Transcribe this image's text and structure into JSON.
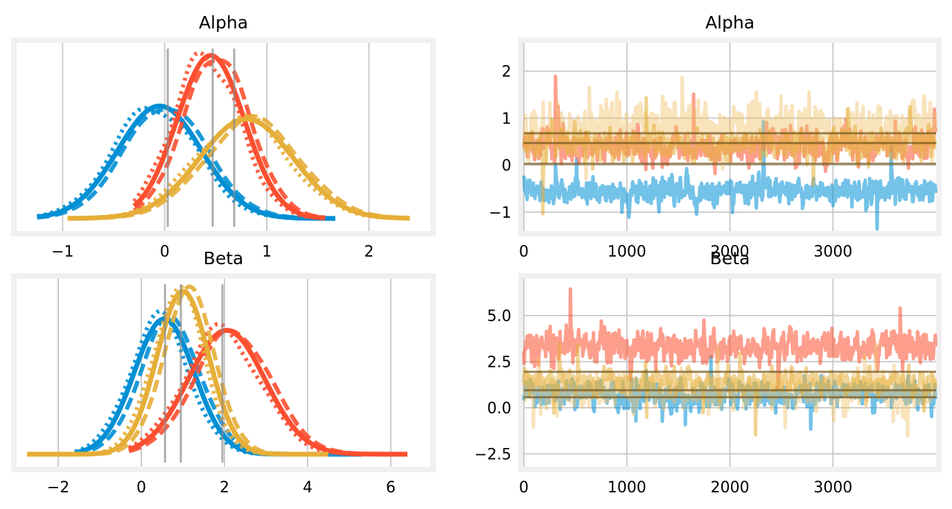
{
  "chart_data": [
    {
      "type": "line",
      "subtype": "kde",
      "title": "Alpha",
      "xlim": [
        -1.45,
        2.6
      ],
      "xticks": [
        -1,
        0,
        1,
        2
      ],
      "xticklabels": [
        "−1",
        "0",
        "1",
        "2"
      ],
      "yticks": [],
      "grid": true,
      "reference_lines_x": [
        0.03,
        0.47,
        0.68
      ],
      "series": [
        {
          "chain": "blue",
          "color": "#008fd5",
          "mean": -0.05,
          "sd": 0.41,
          "peak": 0.69,
          "range": [
            -1.25,
            1.67
          ]
        },
        {
          "chain": "red",
          "color": "#fc4f30",
          "mean": 0.45,
          "sd": 0.33,
          "peak": 1.0,
          "range": [
            -0.3,
            1.57
          ]
        },
        {
          "chain": "yellow",
          "color": "#e5ae38",
          "mean": 0.8,
          "sd": 0.46,
          "peak": 0.61,
          "range": [
            -0.95,
            2.4
          ]
        }
      ]
    },
    {
      "type": "line",
      "subtype": "trace",
      "title": "Alpha",
      "xlim": [
        0,
        4000
      ],
      "ylim": [
        -1.4,
        2.6
      ],
      "xticks": [
        0,
        1000,
        2000,
        3000
      ],
      "xticklabels": [
        "0",
        "1000",
        "2000",
        "3000"
      ],
      "yticks": [
        -1,
        0,
        1,
        2
      ],
      "yticklabels": [
        "−1",
        "0",
        "1",
        "2"
      ],
      "grid": true,
      "reference_lines_y": [
        0.03,
        0.47,
        0.68
      ],
      "draws": 4000,
      "series": [
        {
          "chain": "blue",
          "color": "#008fd5",
          "mean": -0.55,
          "sd": 0.26
        },
        {
          "chain": "red",
          "color": "#fc4f30",
          "mean": 0.4,
          "sd": 0.33
        },
        {
          "chain": "yellow-light",
          "color": "#f0c268",
          "mean": 0.8,
          "sd": 0.5
        },
        {
          "chain": "yellow",
          "color": "#e5ae38",
          "mean": 0.42,
          "sd": 0.3
        }
      ]
    },
    {
      "type": "line",
      "subtype": "kde",
      "title": "Beta",
      "xlim": [
        -3.0,
        6.95
      ],
      "xticks": [
        -2,
        0,
        2,
        4,
        6
      ],
      "xticklabels": [
        "−2",
        "0",
        "2",
        "4",
        "6"
      ],
      "yticks": [],
      "grid": true,
      "reference_lines_x": [
        0.57,
        0.95,
        1.95
      ],
      "series": [
        {
          "chain": "blue",
          "color": "#008fd5",
          "mean": 0.55,
          "sd": 0.72,
          "peak": 0.83,
          "range": [
            -1.6,
            5.3
          ]
        },
        {
          "chain": "red",
          "color": "#fc4f30",
          "mean": 2.05,
          "sd": 0.92,
          "peak": 0.76,
          "range": [
            -0.3,
            6.4
          ]
        },
        {
          "chain": "yellow",
          "color": "#e5ae38",
          "mean": 1.0,
          "sd": 0.62,
          "peak": 1.0,
          "range": [
            -2.75,
            4.5
          ]
        }
      ]
    },
    {
      "type": "line",
      "subtype": "trace",
      "title": "Beta",
      "xlim": [
        0,
        4000
      ],
      "ylim": [
        -3.2,
        7.0
      ],
      "xticks": [
        0,
        1000,
        2000,
        3000
      ],
      "xticklabels": [
        "0",
        "1000",
        "2000",
        "3000"
      ],
      "yticks": [
        -2.5,
        0.0,
        2.5,
        5.0
      ],
      "yticklabels": [
        "−2.5",
        "0.0",
        "2.5",
        "5.0"
      ],
      "grid": true,
      "reference_lines_y": [
        0.57,
        0.95,
        1.95
      ],
      "draws": 4000,
      "series": [
        {
          "chain": "blue",
          "color": "#008fd5",
          "mean": 0.7,
          "sd": 0.7
        },
        {
          "chain": "red",
          "color": "#fc4f30",
          "mean": 3.3,
          "sd": 0.8
        },
        {
          "chain": "yellow-light",
          "color": "#f0c268",
          "mean": 0.9,
          "sd": 0.85
        },
        {
          "chain": "yellow",
          "color": "#e5ae38",
          "mean": 1.4,
          "sd": 0.6
        }
      ]
    }
  ]
}
